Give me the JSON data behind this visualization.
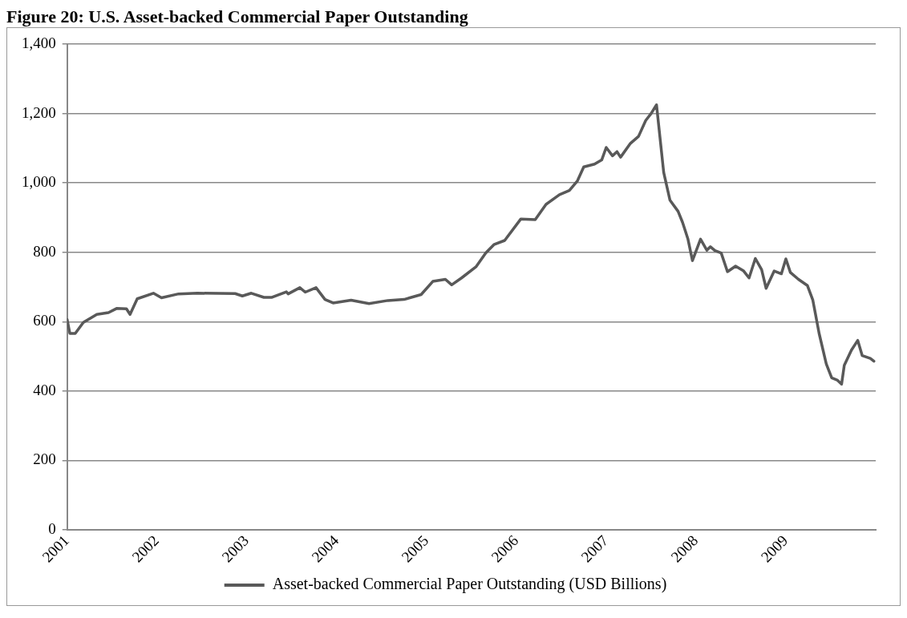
{
  "chart_data": {
    "type": "line",
    "title": "Figure 20: U.S. Asset-backed Commercial Paper Outstanding",
    "xlim": [
      2001,
      2010
    ],
    "xticks": [
      2001,
      2002,
      2003,
      2004,
      2005,
      2006,
      2007,
      2008,
      2009
    ],
    "ylim": [
      0,
      1400
    ],
    "yticks": [
      0,
      200,
      400,
      600,
      800,
      {
        "value": 1000,
        "label": "1,000"
      },
      {
        "value": 1200,
        "label": "1,200"
      },
      {
        "value": 1400,
        "label": "1,400"
      }
    ],
    "grid": "y",
    "legend": "bottom",
    "marker": "none",
    "line_style": "solid",
    "series": [
      {
        "name": "Asset-backed Commercial Paper Outstanding (USD Billions)",
        "color": "#595959",
        "x": [
          2001.0,
          2001.03,
          2001.09,
          2001.18,
          2001.33,
          2001.46,
          2001.55,
          2001.66,
          2001.7,
          2001.78,
          2001.96,
          2002.05,
          2002.24,
          2002.45,
          2002.87,
          2002.95,
          2003.05,
          2003.19,
          2003.28,
          2003.44,
          2003.46,
          2003.59,
          2003.65,
          2003.77,
          2003.87,
          2003.96,
          2004.16,
          2004.36,
          2004.57,
          2004.75,
          2004.94,
          2005.07,
          2005.21,
          2005.28,
          2005.39,
          2005.55,
          2005.66,
          2005.75,
          2005.87,
          2006.05,
          2006.21,
          2006.33,
          2006.48,
          2006.59,
          2006.68,
          2006.75,
          2006.87,
          2006.95,
          2007.0,
          2007.07,
          2007.12,
          2007.16,
          2007.27,
          2007.36,
          2007.44,
          2007.5,
          2007.56,
          2007.64,
          2007.71,
          2007.8,
          2007.85,
          2007.91,
          2007.96,
          2008.05,
          2008.12,
          2008.16,
          2008.21,
          2008.28,
          2008.35,
          2008.44,
          2008.53,
          2008.59,
          2008.66,
          2008.73,
          2008.78,
          2008.87,
          2008.95,
          2009.0,
          2009.05,
          2009.14,
          2009.24,
          2009.3,
          2009.37,
          2009.45,
          2009.51,
          2009.57,
          2009.62,
          2009.65,
          2009.73,
          2009.8,
          2009.85,
          2009.94,
          2009.98
        ],
        "values": [
          606,
          566,
          566,
          598,
          621,
          626,
          638,
          637,
          621,
          666,
          682,
          669,
          680,
          682,
          681,
          674,
          682,
          670,
          670,
          686,
          680,
          698,
          685,
          698,
          664,
          654,
          662,
          652,
          661,
          664,
          678,
          716,
          722,
          706,
          726,
          758,
          798,
          822,
          834,
          896,
          894,
          938,
          966,
          978,
          1006,
          1046,
          1054,
          1066,
          1102,
          1078,
          1090,
          1074,
          1114,
          1134,
          1180,
          1200,
          1225,
          1030,
          950,
          918,
          886,
          838,
          776,
          838,
          806,
          816,
          805,
          798,
          744,
          760,
          746,
          726,
          782,
          750,
          696,
          746,
          738,
          781,
          742,
          722,
          704,
          662,
          566,
          478,
          438,
          432,
          420,
          474,
          518,
          546,
          502,
          494,
          486
        ]
      }
    ]
  }
}
